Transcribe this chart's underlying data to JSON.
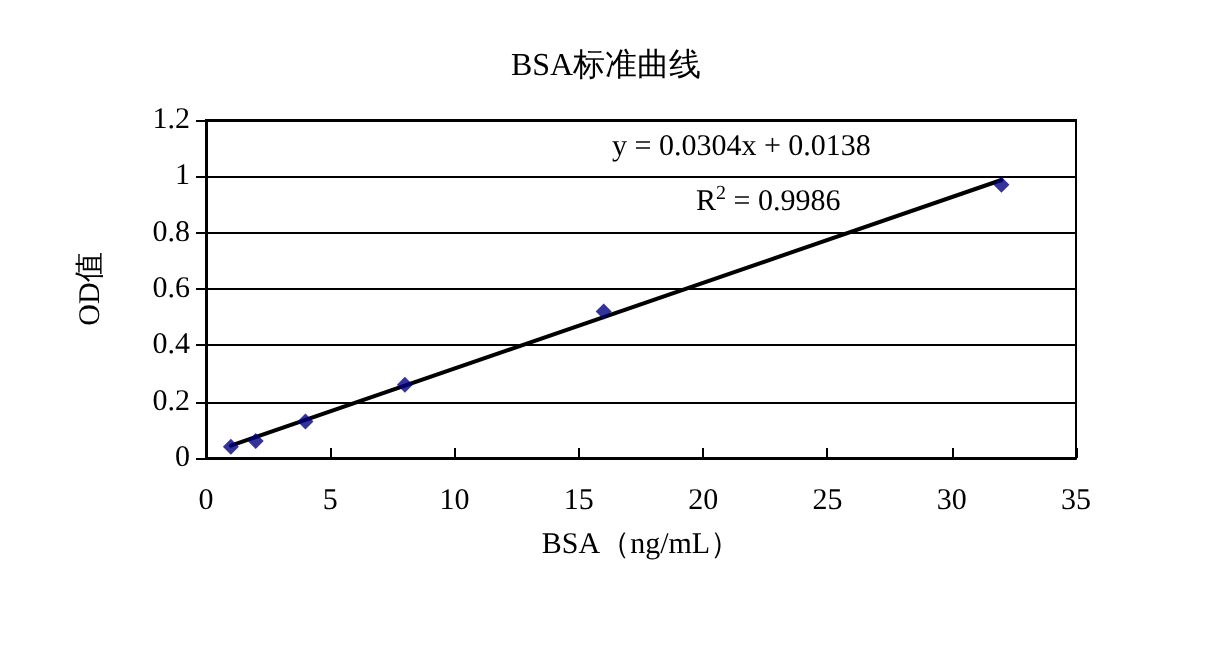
{
  "chart_data": {
    "type": "scatter",
    "title": "BSA标准曲线",
    "xlabel": "BSA（ng/mL）",
    "ylabel": "OD值",
    "x": [
      1,
      2,
      4,
      8,
      16,
      32
    ],
    "series": [
      {
        "color": "#000080",
        "values": [
          0.04,
          0.06,
          0.13,
          0.26,
          0.52,
          0.97
        ],
        "marker": "diamond"
      },
      {
        "type": "line",
        "color": "#000000",
        "x": [
          1,
          32
        ],
        "values": [
          0.044,
          0.987
        ],
        "marker": "none",
        "line_style": "solid"
      }
    ],
    "xlim": [
      0,
      35
    ],
    "xticks": [
      0,
      5,
      10,
      15,
      20,
      25,
      30,
      35
    ],
    "ylim": [
      0,
      1.2
    ],
    "yticks": [
      0,
      0.2,
      0.4,
      0.6,
      0.8,
      1,
      1.2
    ],
    "grid": "y",
    "annotations": [
      "y = 0.0304x + 0.0138",
      "R$^{2}$ = 0.9986"
    ]
  }
}
